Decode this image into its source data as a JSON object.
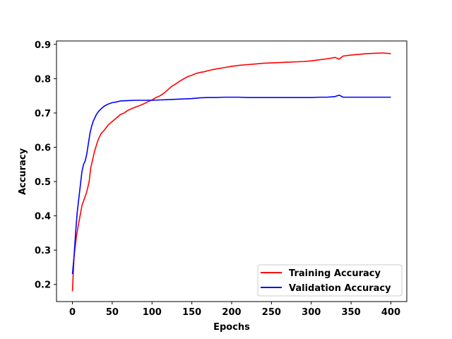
{
  "chart_data": {
    "type": "line",
    "title": "",
    "xlabel": "Epochs",
    "ylabel": "Accuracy",
    "xlim": [
      -20,
      420
    ],
    "ylim": [
      0.15,
      0.91
    ],
    "xticks": [
      0,
      50,
      100,
      150,
      200,
      250,
      300,
      350,
      400
    ],
    "yticks": [
      0.2,
      0.3,
      0.4,
      0.5,
      0.6,
      0.7,
      0.8,
      0.9
    ],
    "legend_position": "lower-right",
    "grid": false,
    "series": [
      {
        "name": "Training Accuracy",
        "color": "#ff0000",
        "x": [
          0,
          2,
          5,
          8,
          12,
          15,
          18,
          21,
          23,
          25,
          28,
          32,
          36,
          40,
          45,
          50,
          55,
          60,
          65,
          70,
          75,
          80,
          85,
          90,
          95,
          100,
          105,
          110,
          115,
          120,
          125,
          130,
          135,
          140,
          145,
          150,
          155,
          160,
          165,
          170,
          175,
          180,
          190,
          200,
          210,
          220,
          230,
          240,
          250,
          260,
          270,
          280,
          290,
          300,
          310,
          320,
          330,
          335,
          340,
          350,
          360,
          370,
          380,
          390,
          400
        ],
        "y": [
          0.18,
          0.28,
          0.34,
          0.38,
          0.43,
          0.45,
          0.47,
          0.5,
          0.54,
          0.56,
          0.59,
          0.62,
          0.64,
          0.65,
          0.665,
          0.675,
          0.685,
          0.695,
          0.7,
          0.708,
          0.713,
          0.718,
          0.722,
          0.727,
          0.733,
          0.738,
          0.745,
          0.75,
          0.758,
          0.768,
          0.778,
          0.785,
          0.793,
          0.8,
          0.806,
          0.81,
          0.815,
          0.818,
          0.82,
          0.823,
          0.826,
          0.828,
          0.832,
          0.836,
          0.839,
          0.841,
          0.843,
          0.845,
          0.846,
          0.847,
          0.848,
          0.849,
          0.85,
          0.852,
          0.855,
          0.858,
          0.862,
          0.857,
          0.866,
          0.869,
          0.871,
          0.873,
          0.874,
          0.875,
          0.873
        ]
      },
      {
        "name": "Validation Accuracy",
        "color": "#0000ff",
        "x": [
          0,
          2,
          4,
          6,
          8,
          10,
          12,
          14,
          16,
          18,
          20,
          22,
          24,
          26,
          28,
          30,
          33,
          36,
          40,
          45,
          50,
          55,
          60,
          70,
          80,
          90,
          100,
          110,
          120,
          130,
          140,
          150,
          160,
          170,
          180,
          190,
          200,
          210,
          220,
          230,
          240,
          250,
          260,
          270,
          280,
          290,
          300,
          310,
          320,
          330,
          335,
          340,
          350,
          360,
          370,
          380,
          390,
          400
        ],
        "y": [
          0.23,
          0.28,
          0.35,
          0.41,
          0.45,
          0.49,
          0.53,
          0.55,
          0.56,
          0.58,
          0.61,
          0.64,
          0.66,
          0.675,
          0.685,
          0.695,
          0.705,
          0.712,
          0.72,
          0.726,
          0.73,
          0.732,
          0.735,
          0.736,
          0.737,
          0.737,
          0.737,
          0.738,
          0.739,
          0.74,
          0.741,
          0.742,
          0.744,
          0.745,
          0.745,
          0.746,
          0.746,
          0.746,
          0.745,
          0.745,
          0.745,
          0.745,
          0.745,
          0.745,
          0.745,
          0.745,
          0.745,
          0.746,
          0.746,
          0.748,
          0.752,
          0.746,
          0.746,
          0.746,
          0.746,
          0.746,
          0.746,
          0.746
        ]
      }
    ]
  }
}
